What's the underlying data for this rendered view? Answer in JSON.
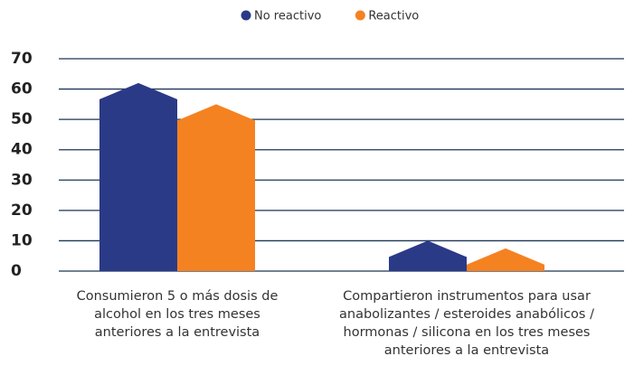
{
  "chart_data": {
    "type": "bar",
    "categories": [
      "Consumieron 5 o más dosis de alcohol en los tres meses anteriores a la entrevista",
      "Compartieron instrumentos para usar anabolizantes / esteroides anabólicos / hormonas / silicona en los tres meses anteriores a la entrevista"
    ],
    "series": [
      {
        "name": "No reactivo",
        "color": "#2b3a87",
        "values": [
          62,
          10
        ]
      },
      {
        "name": "Reactivo",
        "color": "#f58220",
        "values": [
          55,
          7.5
        ]
      }
    ],
    "ylim": [
      0,
      70
    ],
    "yticks": [
      0,
      10,
      20,
      30,
      40,
      50,
      60,
      70
    ],
    "grid": true,
    "legend": "top"
  }
}
